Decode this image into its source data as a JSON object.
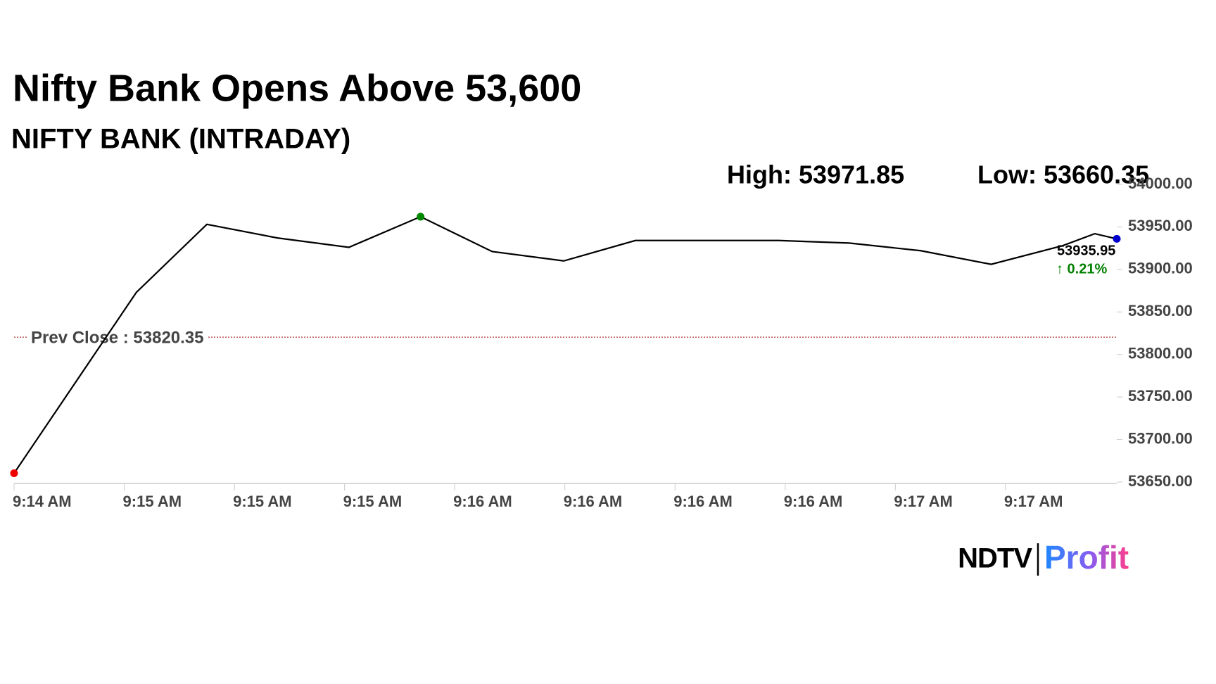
{
  "chart_data": {
    "type": "line",
    "title": "Nifty Bank Opens Above 53,600",
    "subtitle": "NIFTY BANK (INTRADAY)",
    "high_text": "High: 53971.85",
    "low_text": "Low: 53660.35",
    "x": [
      0,
      1.11,
      1.75,
      2.39,
      3.04,
      3.69,
      4.34,
      4.99,
      5.64,
      6.29,
      6.94,
      7.58,
      8.23,
      8.87,
      9.52,
      9.81,
      10.01
    ],
    "values": [
      53660.35,
      53873,
      53953,
      53937,
      53926,
      53962,
      53921,
      53910,
      53934,
      53934,
      53934,
      53931,
      53922,
      53906,
      53928,
      53942,
      53935.95
    ],
    "color": "#000000",
    "point_markers": [
      {
        "index": 0,
        "color": "#ee0000"
      },
      {
        "index": 5,
        "color": "#008800"
      },
      {
        "index": 16,
        "color": "#0000cc"
      }
    ],
    "last_label": "53935.95",
    "change_label": "↑ 0.21%",
    "change_color": "#008000",
    "reference_line": {
      "value": 53820.35,
      "label": "Prev Close : 53820.35",
      "color": "#b03030"
    },
    "xlim": [
      0,
      10.01
    ],
    "xticks": [
      {
        "value": 0,
        "label": "9:14 AM"
      },
      {
        "value": 1,
        "label": "9:15 AM"
      },
      {
        "value": 2,
        "label": "9:15 AM"
      },
      {
        "value": 3,
        "label": "9:15 AM"
      },
      {
        "value": 4,
        "label": "9:16 AM"
      },
      {
        "value": 5,
        "label": "9:16 AM"
      },
      {
        "value": 6,
        "label": "9:16 AM"
      },
      {
        "value": 7,
        "label": "9:16 AM"
      },
      {
        "value": 8,
        "label": "9:17 AM"
      },
      {
        "value": 9,
        "label": "9:17 AM"
      }
    ],
    "ylim": [
      53650,
      54000
    ],
    "yticks": [
      {
        "value": 53650,
        "label": "53650.00"
      },
      {
        "value": 53700,
        "label": "53700.00"
      },
      {
        "value": 53750,
        "label": "53750.00"
      },
      {
        "value": 53800,
        "label": "53800.00"
      },
      {
        "value": 53850,
        "label": "53850.00"
      },
      {
        "value": 53900,
        "label": "53900.00"
      },
      {
        "value": 53950,
        "label": "53950.00"
      },
      {
        "value": 54000,
        "label": "54000.00"
      }
    ],
    "grid": false
  },
  "brand": {
    "left": "NDTV",
    "right": "Profit"
  }
}
